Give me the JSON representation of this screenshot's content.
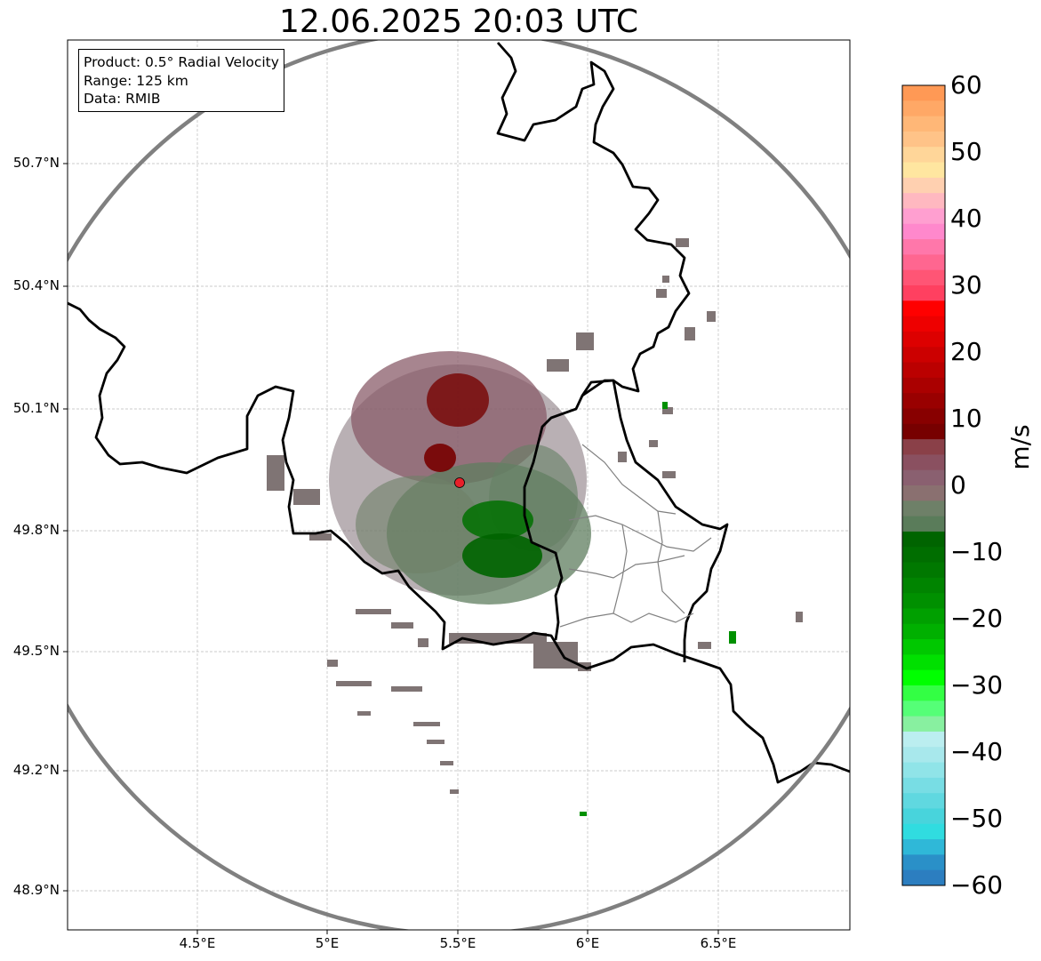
{
  "map": {
    "title": "12.06.2025 20:03 UTC",
    "info_box": [
      "Product: 0.5° Radial Velocity",
      "Range: 125 km",
      "Data: RMIB"
    ],
    "lat_ticks": [
      "50.7°N",
      "50.4°N",
      "50.1°N",
      "49.8°N",
      "49.5°N",
      "49.2°N",
      "48.9°N"
    ],
    "lon_ticks": [
      "4.5°E",
      "5°E",
      "5.5°E",
      "6°E",
      "6.5°E"
    ],
    "radar_marker_color": "#e8202a",
    "range_ring_color": "#808080",
    "border_color": "#000000",
    "admin_border_color": "#808080"
  },
  "colorbar": {
    "unit": "m/s",
    "min": -60,
    "max": 60,
    "ticks": [
      "60",
      "50",
      "40",
      "30",
      "20",
      "10",
      "0",
      "−10",
      "−20",
      "−30",
      "−40",
      "−50",
      "−60"
    ],
    "colors_top_to_bottom": [
      "#ff9955",
      "#ffa866",
      "#ffb777",
      "#ffc388",
      "#ffd699",
      "#ffe6a0",
      "#ffd0b0",
      "#ffb8c0",
      "#ff9fd0",
      "#ff88cc",
      "#ff77aa",
      "#ff6690",
      "#ff5575",
      "#ff4060",
      "#ff0000",
      "#ee0000",
      "#dd0000",
      "#cc0000",
      "#bb0000",
      "#aa0000",
      "#990000",
      "#880000",
      "#770000",
      "#8a4048",
      "#8a5060",
      "#8a6070",
      "#8a7070",
      "#6e8068",
      "#5a7c5a",
      "#006400",
      "#006e00",
      "#007800",
      "#008400",
      "#009000",
      "#00a000",
      "#00b000",
      "#00c800",
      "#00e000",
      "#00ff00",
      "#33ff44",
      "#55ff77",
      "#88f0a0",
      "#bbeef0",
      "#a8e8ec",
      "#90e4e8",
      "#78dde4",
      "#60d8e0",
      "#48d4dc",
      "#30dce0",
      "#2fb8d8",
      "#2a90c8",
      "#2c7ec0"
    ]
  }
}
